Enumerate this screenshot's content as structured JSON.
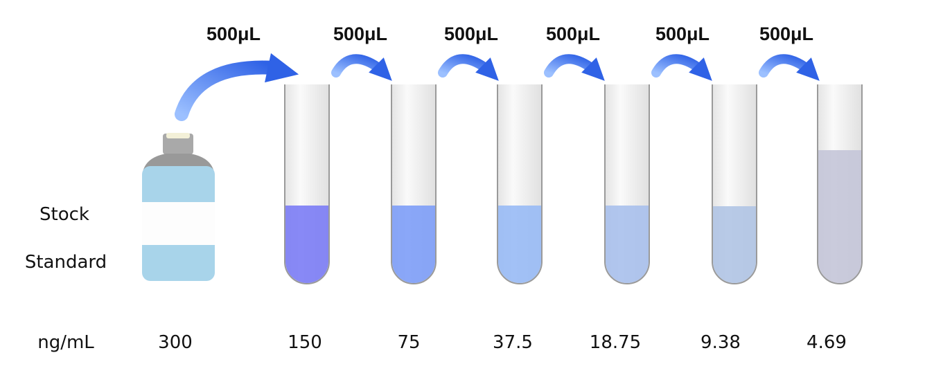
{
  "transfer_labels": [
    "500μL",
    "500μL",
    "500μL",
    "500μL",
    "500μL",
    "500μL"
  ],
  "stock_label": [
    "Stock",
    "Standard"
  ],
  "concentration_unit": "ng/mL",
  "concentrations": [
    "300",
    "150",
    "75",
    "37.5",
    "18.75",
    "9.38",
    "4.69"
  ]
}
